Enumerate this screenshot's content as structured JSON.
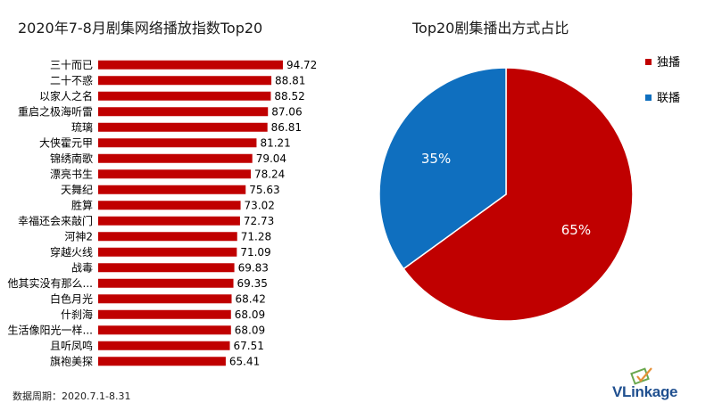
{
  "chart_data": [
    {
      "type": "bar",
      "orientation": "horizontal",
      "title": "2020年7-8月剧集网络播放指数Top20",
      "categories": [
        "三十而已",
        "二十不惑",
        "以家人之名",
        "重启之极海听雷",
        "琉璃",
        "大侠霍元甲",
        "锦绣南歌",
        "漂亮书生",
        "天舞纪",
        "胜算",
        "幸福还会来敲门",
        "河神2",
        "穿越火线",
        "战毒",
        "他其实没有那么...",
        "白色月光",
        "什刹海",
        "生活像阳光一样...",
        "且听凤鸣",
        "旗袍美探"
      ],
      "values": [
        94.72,
        88.81,
        88.52,
        87.06,
        86.81,
        81.21,
        79.04,
        78.24,
        75.63,
        73.02,
        72.73,
        71.28,
        71.09,
        69.83,
        69.35,
        68.42,
        68.09,
        68.09,
        67.51,
        65.41
      ],
      "value_labels": [
        "94.72",
        "88.81",
        "88.52",
        "87.06",
        "86.81",
        "81.21",
        "79.04",
        "78.24",
        "75.63",
        "73.02",
        "72.73",
        "71.28",
        "71.09",
        "69.83",
        "69.35",
        "68.42",
        "68.09",
        "68.09",
        "67.51",
        "65.41"
      ],
      "color": "#c00000"
    },
    {
      "type": "pie",
      "title": "Top20剧集播出方式占比",
      "slices": [
        {
          "name": "独播",
          "value": 65,
          "label": "65%",
          "color": "#c00000"
        },
        {
          "name": "联播",
          "value": 35,
          "label": "35%",
          "color": "#0f6fbf"
        }
      ],
      "legend_position": "right"
    }
  ],
  "footer": {
    "period": "数据周期：2020.7.1-8.31"
  },
  "logo": {
    "v": "V",
    "rest": "Linkage"
  }
}
